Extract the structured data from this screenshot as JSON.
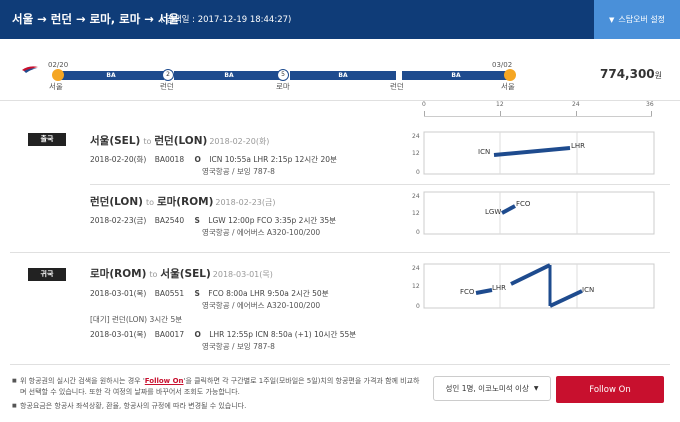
{
  "header": {
    "route_title": "서울 → 런던 → 로마, 로마 → 서울",
    "search_date": "( 검색일 : 2017-12-19 18:44:27)",
    "stopover_label": "스탑오버 설정",
    "stopover_icon": "chevron-down-icon"
  },
  "summary": {
    "start_date": "02/20",
    "end_date": "03/02",
    "carrier_code": "BA",
    "stop_counts": [
      "2",
      "5"
    ],
    "cities": [
      "서울",
      "런던",
      "로마",
      "런던",
      "서울"
    ],
    "total_price": "774,300",
    "currency": "원"
  },
  "scale": {
    "ticks": [
      "0",
      "12",
      "24",
      "36"
    ]
  },
  "outbound": {
    "badge": "출국",
    "legs": [
      {
        "from": "서울(SEL)",
        "to_word": "to",
        "to": "런던(LON)",
        "date": "2018-02-20(화)",
        "segments": [
          {
            "date": "2018-02-20(화)",
            "flight": "BA0018",
            "symbol": "O",
            "detail": "ICN 10:55a LHR 2:15p   12시간 20분",
            "sub": "영국항공 / 보잉 787-8"
          }
        ],
        "chart": {
          "y_ticks": [
            "24",
            "12",
            "0"
          ],
          "labels": [
            "ICN",
            "LHR"
          ]
        }
      },
      {
        "from": "런던(LON)",
        "to_word": "to",
        "to": "로마(ROM)",
        "date": "2018-02-23(금)",
        "segments": [
          {
            "date": "2018-02-23(금)",
            "flight": "BA2540",
            "symbol": "S",
            "detail": "LGW 12:00p FCO 3:35p   2시간 35분",
            "sub": "영국항공 / 에어버스 A320-100/200"
          }
        ],
        "chart": {
          "y_ticks": [
            "24",
            "12",
            "0"
          ],
          "labels": [
            "LGW",
            "FCO"
          ]
        }
      }
    ]
  },
  "inbound": {
    "badge": "귀국",
    "legs": [
      {
        "from": "로마(ROM)",
        "to_word": "to",
        "to": "서울(SEL)",
        "date": "2018-03-01(목)",
        "segments": [
          {
            "date": "2018-03-01(목)",
            "flight": "BA0551",
            "symbol": "S",
            "detail": "FCO 8:00a LHR 9:50a   2시간 50분",
            "sub": "영국항공 / 에어버스 A320-100/200"
          },
          {
            "date": "2018-03-01(목)",
            "flight": "BA0017",
            "symbol": "O",
            "detail": "LHR 12:55p ICN 8:50a (+1)   10시간 55분",
            "sub": "영국항공 / 보잉 787-8"
          }
        ],
        "layover": "[대기] 런던(LON)   3시간 5분",
        "chart": {
          "y_ticks": [
            "24",
            "12",
            "0"
          ],
          "labels": [
            "FCO",
            "LHR",
            "ICN"
          ]
        }
      }
    ]
  },
  "footer": {
    "note1_pre": "위 항공권의 실시간 검색을 원하시는 경우 '",
    "note1_link": "Follow On",
    "note1_post": "'을 클릭하면 각 구간별로 1주일(모바일은 5일)치의 항공편을 가격과 함께 비교하며 선택할 수 있습니다. 또한 각 여정의 날짜를 바꾸어서 조회도 가능합니다.",
    "note2": "항공요금은 항공사 좌석상황, 환율, 항공사의 규정에 따라 변경될 수 있습니다.",
    "pax_select": "성인 1명, 이코노미석 이상",
    "follow_button": "Follow On"
  },
  "colors": {
    "header_bg": "#0f3c78",
    "bar": "#1e4b8e",
    "accent_orange": "#f5a623",
    "follow_red": "#c8102e",
    "stopover_bg": "#4a90d9"
  }
}
